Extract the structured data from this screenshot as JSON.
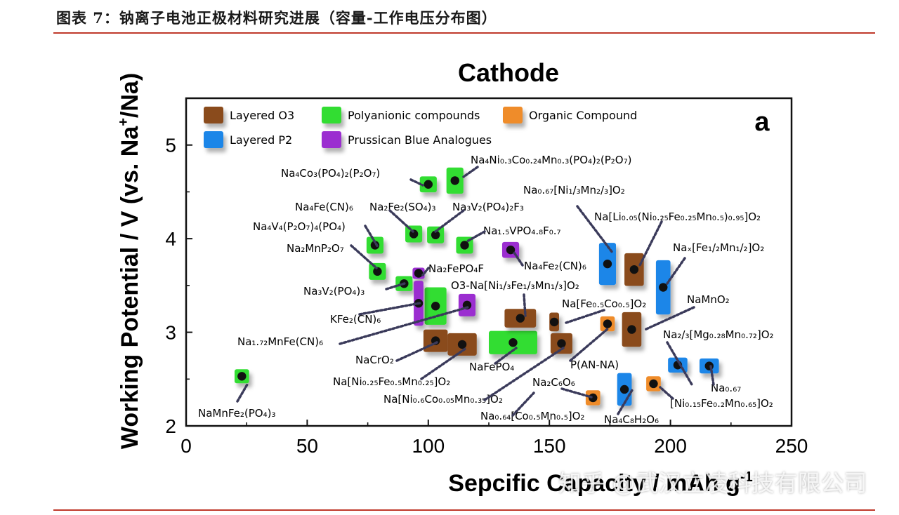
{
  "caption": "图表 7：钠离子电池正极材料研究进展（容量-工作电压分布图）",
  "watermark": "知乎 @武汉立凌科技有限公司",
  "colors": {
    "layered_o3": "#8a4b1c",
    "layered_p2": "#1f86e8",
    "polyanionic": "#33dd33",
    "prussian": "#9b2fd0",
    "organic": "#ef8c2a",
    "rule": "#c0392b"
  },
  "chart_data": {
    "type": "scatter",
    "title": "Cathode",
    "xlabel": "Sepcific Capacity / mAh g",
    "xlabel_sup": "-1",
    "ylabel": "Working Potential / V (vs. Na",
    "ylabel_sup": "+",
    "ylabel_end": "/Na)",
    "panel_label": "a",
    "xlim": [
      0,
      250
    ],
    "ylim": [
      2,
      5.5
    ],
    "xticks": [
      0,
      50,
      100,
      150,
      200,
      250
    ],
    "yticks": [
      2,
      3,
      4,
      5
    ],
    "legend_position": "top-left",
    "legend": [
      {
        "name": "Layered O3",
        "color": "#8a4b1c"
      },
      {
        "name": "Polyanionic compounds",
        "color": "#33dd33"
      },
      {
        "name": "Organic Compound",
        "color": "#ef8c2a"
      },
      {
        "name": "Layered P2",
        "color": "#1f86e8"
      },
      {
        "name": "Prussican Blue Analogues",
        "color": "#9b2fd0"
      }
    ],
    "points": [
      {
        "cls": "polyanionic",
        "x": 23,
        "y": 2.53,
        "w": 6,
        "h": 0.15,
        "label": "NaMnFe₂(PO₄)₃"
      },
      {
        "cls": "polyanionic",
        "x": 100,
        "y": 4.58,
        "w": 7,
        "h": 0.17,
        "label": "Na₄Co₃(PO₄)₂(P₂O₇)"
      },
      {
        "cls": "polyanionic",
        "x": 111,
        "y": 4.62,
        "w": 7,
        "h": 0.28,
        "label": "Na₄Ni₀.₃Co₀.₂₄Mn₀.₃(PO₄)₂(P₂O₇)"
      },
      {
        "cls": "polyanionic",
        "x": 94,
        "y": 4.05,
        "w": 7,
        "h": 0.18,
        "label": "Na₂Fe₂(SO₄)₃"
      },
      {
        "cls": "polyanionic",
        "x": 103,
        "y": 4.04,
        "w": 7,
        "h": 0.18,
        "label": "Na₃V₂(PO₄)₂F₃"
      },
      {
        "cls": "polyanionic",
        "x": 115,
        "y": 3.93,
        "w": 7,
        "h": 0.18,
        "label": "Na₁.₅VPO₄.₈F₀.₇"
      },
      {
        "cls": "polyanionic",
        "x": 78,
        "y": 3.93,
        "w": 7,
        "h": 0.18,
        "label": "Na₄V₄(P₂O₇)₄(PO₄)"
      },
      {
        "cls": "polyanionic",
        "x": 79,
        "y": 3.65,
        "w": 7,
        "h": 0.18,
        "label": "Na₂MnP₂O₇"
      },
      {
        "cls": "polyanionic",
        "x": 90,
        "y": 3.52,
        "w": 7,
        "h": 0.16,
        "label": "Na₃V₂(PO₄)₃"
      },
      {
        "cls": "polyanionic",
        "x": 103,
        "y": 3.28,
        "w": 9,
        "h": 0.4,
        "label": "Na₂FePO₄F"
      },
      {
        "cls": "polyanionic",
        "x": 135,
        "y": 2.89,
        "w": 20,
        "h": 0.25,
        "label": "NaFePO₄"
      },
      {
        "cls": "prussian",
        "x": 96,
        "y": 3.63,
        "w": 5,
        "h": 0.12,
        "label": "Na₄Fe(CN)₆"
      },
      {
        "cls": "prussian",
        "x": 96,
        "y": 3.31,
        "w": 4,
        "h": 0.48,
        "label": "KFe₂(CN)₆"
      },
      {
        "cls": "prussian",
        "x": 116,
        "y": 3.29,
        "w": 7,
        "h": 0.24,
        "label": "Na₁.₇₂MnFe(CN)₆"
      },
      {
        "cls": "prussian",
        "x": 134,
        "y": 3.88,
        "w": 7,
        "h": 0.17,
        "label": "Na₄Fe₂(CN)₆"
      },
      {
        "cls": "layered_o3",
        "x": 103,
        "y": 2.91,
        "w": 10,
        "h": 0.24,
        "label": "NaCrO₂"
      },
      {
        "cls": "layered_o3",
        "x": 114,
        "y": 2.87,
        "w": 12,
        "h": 0.24,
        "label": "Na[Ni₀.₂₅Fe₀.₅Mn₀.₂₅]O₂"
      },
      {
        "cls": "layered_o3",
        "x": 138,
        "y": 3.15,
        "w": 13,
        "h": 0.2,
        "label": "O3-Na[Ni₁/₃Fe₁/₃Mn₁/₃]O₂"
      },
      {
        "cls": "layered_o3",
        "x": 152,
        "y": 3.11,
        "w": 4,
        "h": 0.2,
        "label": "Na[Fe₀.₅Co₀.₅]O₂"
      },
      {
        "cls": "layered_o3",
        "x": 155,
        "y": 2.88,
        "w": 9,
        "h": 0.22,
        "label": "Na[Ni₀.₆Co₀.₀₅Mn₀.₃₅]O₂"
      },
      {
        "cls": "layered_o3",
        "x": 185,
        "y": 3.67,
        "w": 8,
        "h": 0.35,
        "label": "Na[Li₀.₀₅(Ni₀.₂₅Fe₀.₂₅Mn₀.₅)₀.₉₅]O₂"
      },
      {
        "cls": "layered_o3",
        "x": 184,
        "y": 3.03,
        "w": 8,
        "h": 0.37,
        "label": "NaMnO₂"
      },
      {
        "cls": "layered_p2",
        "x": 174,
        "y": 3.73,
        "w": 7,
        "h": 0.45,
        "label": "Na₀.₆₇[Ni₁/₃Mn₂/₃]O₂"
      },
      {
        "cls": "layered_p2",
        "x": 197,
        "y": 3.48,
        "w": 6,
        "h": 0.58,
        "label": "Naₓ[Fe₁/₂Mn₁/₂]O₂"
      },
      {
        "cls": "layered_p2",
        "x": 203,
        "y": 2.65,
        "w": 8,
        "h": 0.16,
        "label": "Na₂/₃[Mg₀.₂₈Mn₀.₇₂]O₂"
      },
      {
        "cls": "layered_p2",
        "x": 216,
        "y": 2.64,
        "w": 8,
        "h": 0.16,
        "label": "Na₀.₆₇[Ni₀.₁₅Fe₀.₂Mn₀.₆₅]O₂"
      },
      {
        "cls": "layered_p2",
        "x": 181,
        "y": 2.39,
        "w": 6,
        "h": 0.35,
        "label": "Na₀.₆₄[Co₀.₅Mn₀.₅]O₂"
      },
      {
        "cls": "organic",
        "x": 174,
        "y": 3.09,
        "w": 6,
        "h": 0.16,
        "label": "P(AN-NA)"
      },
      {
        "cls": "organic",
        "x": 168,
        "y": 2.3,
        "w": 6,
        "h": 0.16,
        "label": "Na₂C₆O₆"
      },
      {
        "cls": "organic",
        "x": 193,
        "y": 2.45,
        "w": 6,
        "h": 0.16,
        "label": "Na₄C₈H₂O₆"
      }
    ],
    "annotations": [
      {
        "text": "Na₄Co₃(PO₄)₂(P₂O₇)"
      },
      {
        "text": "Na₄Ni₀.₃Co₀.₂₄Mn₀.₃(PO₄)₂(P₂O₇)"
      },
      {
        "text": "Na₀.₆₇[Ni₁/₃Mn₂/₃]O₂"
      },
      {
        "text": "Na₄Fe(CN)₆"
      },
      {
        "text": "Na₂Fe₂(SO₄)₃"
      },
      {
        "text": "Na₃V₂(PO₄)₂F₃"
      },
      {
        "text": "Na[Li₀.₀₅(Ni₀.₂₅Fe₀.₂₅Mn₀.₅)₀.₉₅]O₂"
      },
      {
        "text": "Na₄V₄(P₂O₇)₄(PO₄)"
      },
      {
        "text": "Na₁.₅VPO₄.₈F₀.₇"
      },
      {
        "text": "Na₂MnP₂O₇"
      },
      {
        "text": "Naₓ[Fe₁/₂Mn₁/₂]O₂"
      },
      {
        "text": "Na₂FePO₄F"
      },
      {
        "text": "Na₄Fe₂(CN)₆"
      },
      {
        "text": "Na₃V₂(PO₄)₃"
      },
      {
        "text": "O3-Na[Ni₁/₃Fe₁/₃Mn₁/₃]O₂"
      },
      {
        "text": "NaMnO₂"
      },
      {
        "text": "KFe₂(CN)₆"
      },
      {
        "text": "Na[Fe₀.₅Co₀.₅]O₂"
      },
      {
        "text": "Na₂/₃[Mg₀.₂₈Mn₀.₇₂]O₂"
      },
      {
        "text": "Na₁.₇₂MnFe(CN)₆"
      },
      {
        "text": "NaCrO₂"
      },
      {
        "text": "NaFePO₄"
      },
      {
        "text": "P(AN-NA)"
      },
      {
        "text": "Na[Ni₀.₂₅Fe₀.₅Mn₀.₂₅]O₂"
      },
      {
        "text": "Na₂C₆O₆"
      },
      {
        "text": "Na₀.₆₇"
      },
      {
        "text": "Na[Ni₀.₆Co₀.₀₅Mn₀.₃₅]O₂"
      },
      {
        "text": "[Ni₀.₁₅Fe₀.₂Mn₀.₆₅]O₂"
      },
      {
        "text": "NaMnFe₂(PO₄)₃"
      },
      {
        "text": "Na₀.₆₄[Co₀.₅Mn₀.₅]O₂"
      },
      {
        "text": "Na₄C₈H₂O₆"
      }
    ]
  }
}
